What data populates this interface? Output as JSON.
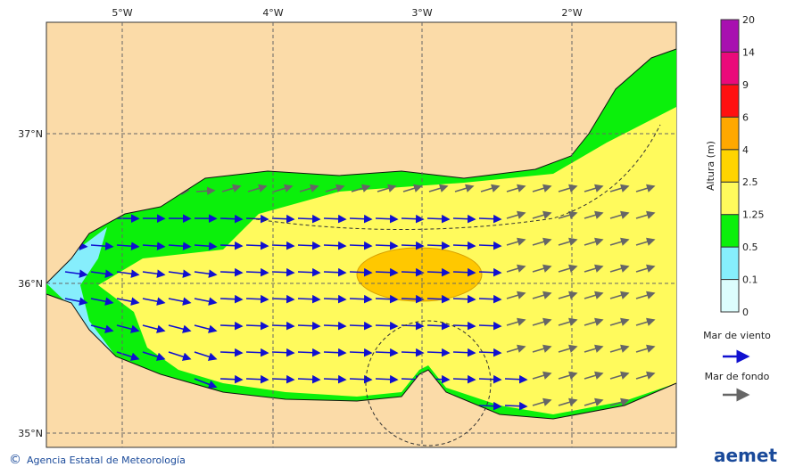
{
  "map": {
    "lon_labels": [
      "5°W",
      "4°W",
      "3°W",
      "2°W"
    ],
    "lat_labels": [
      "37°N",
      "36°N",
      "35°N"
    ]
  },
  "colorbar": {
    "title": "Altura (m)",
    "levels": [
      "0",
      "0.1",
      "0.5",
      "1.25",
      "2.5",
      "4",
      "6",
      "9",
      "14",
      "20"
    ],
    "colors": [
      "#dcfdfd",
      "#86eefc",
      "#0bf00b",
      "#fffa5c",
      "#ffd400",
      "#ffa800",
      "#ff1010",
      "#ea0a7a",
      "#a810b0"
    ]
  },
  "legend": {
    "wind_sea": "Mar de viento",
    "swell": "Mar de fondo"
  },
  "footer": {
    "symbol": "©",
    "agency": "Agencia Estatal de Meteorología",
    "logo": "aemet"
  }
}
